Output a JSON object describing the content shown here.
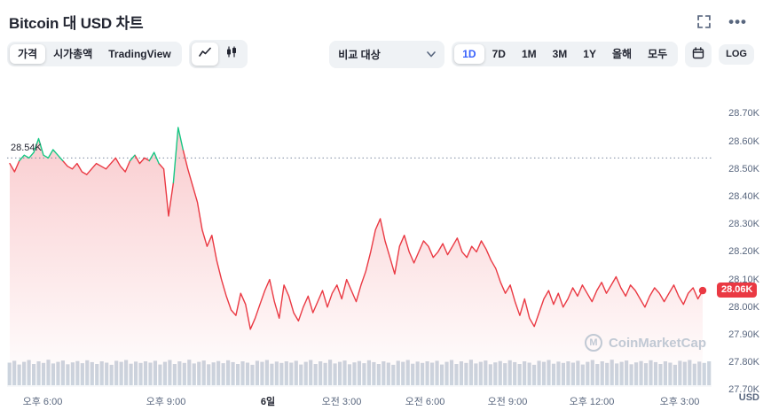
{
  "header": {
    "title": "Bitcoin 대 USD 차트"
  },
  "toolbar": {
    "tabs": [
      {
        "label": "가격",
        "active": true
      },
      {
        "label": "시가총액",
        "active": false
      },
      {
        "label": "TradingView",
        "active": false
      }
    ],
    "chart_types": [
      {
        "name": "line",
        "active": true
      },
      {
        "name": "candlestick",
        "active": false
      }
    ],
    "compare_label": "비교 대상",
    "ranges": [
      {
        "label": "1D",
        "active": true
      },
      {
        "label": "7D",
        "active": false
      },
      {
        "label": "1M",
        "active": false
      },
      {
        "label": "3M",
        "active": false
      },
      {
        "label": "1Y",
        "active": false
      },
      {
        "label": "올해",
        "active": false
      },
      {
        "label": "모두",
        "active": false
      }
    ],
    "log_label": "LOG"
  },
  "watermark": {
    "letter": "M",
    "text": "CoinMarketCap"
  },
  "chart_data": {
    "type": "line",
    "title": "Bitcoin 대 USD 차트 (1D)",
    "y_unit": "USD",
    "ylim": [
      27.7,
      28.82
    ],
    "grid": false,
    "legend": "none",
    "reference": {
      "value": 28.54,
      "label": "28.54K"
    },
    "last": {
      "value": 28.06,
      "label": "28.06K"
    },
    "y_ticks": [
      {
        "value": 28.7,
        "label": "28.70K"
      },
      {
        "value": 28.6,
        "label": "28.60K"
      },
      {
        "value": 28.5,
        "label": "28.50K"
      },
      {
        "value": 28.4,
        "label": "28.40K"
      },
      {
        "value": 28.3,
        "label": "28.30K"
      },
      {
        "value": 28.2,
        "label": "28.20K"
      },
      {
        "value": 28.1,
        "label": "28.10K"
      },
      {
        "value": 28.0,
        "label": "28.00K"
      },
      {
        "value": 27.9,
        "label": "27.90K"
      },
      {
        "value": 27.8,
        "label": "27.80K"
      },
      {
        "value": 27.7,
        "label": "27.70K"
      }
    ],
    "x_ticks": [
      {
        "label": "오후 6:00",
        "pos": 0.05,
        "strong": false
      },
      {
        "label": "오후 9:00",
        "pos": 0.225,
        "strong": false
      },
      {
        "label": "6일",
        "pos": 0.37,
        "strong": true
      },
      {
        "label": "오전 3:00",
        "pos": 0.475,
        "strong": false
      },
      {
        "label": "오전 6:00",
        "pos": 0.593,
        "strong": false
      },
      {
        "label": "오전 9:00",
        "pos": 0.71,
        "strong": false
      },
      {
        "label": "오후 12:00",
        "pos": 0.83,
        "strong": false
      },
      {
        "label": "오후 3:00",
        "pos": 0.955,
        "strong": false
      }
    ],
    "prices_k": [
      28.52,
      28.49,
      28.53,
      28.55,
      28.54,
      28.56,
      28.61,
      28.55,
      28.54,
      28.57,
      28.55,
      28.53,
      28.51,
      28.5,
      28.52,
      28.49,
      28.48,
      28.5,
      28.52,
      28.51,
      28.5,
      28.52,
      28.54,
      28.51,
      28.49,
      28.53,
      28.55,
      28.52,
      28.54,
      28.53,
      28.56,
      28.52,
      28.5,
      28.33,
      28.45,
      28.65,
      28.57,
      28.5,
      28.44,
      28.38,
      28.28,
      28.22,
      28.26,
      28.17,
      28.1,
      28.04,
      27.99,
      27.97,
      28.05,
      28.01,
      27.92,
      27.96,
      28.01,
      28.06,
      28.1,
      28.02,
      27.96,
      28.08,
      28.04,
      27.98,
      27.95,
      28.0,
      28.04,
      27.98,
      28.02,
      28.06,
      28.0,
      28.05,
      28.08,
      28.03,
      28.1,
      28.06,
      28.02,
      28.08,
      28.13,
      28.2,
      28.28,
      28.32,
      28.24,
      28.18,
      28.12,
      28.22,
      28.26,
      28.2,
      28.16,
      28.2,
      28.24,
      28.22,
      28.18,
      28.2,
      28.23,
      28.19,
      28.22,
      28.25,
      28.2,
      28.18,
      28.22,
      28.2,
      28.24,
      28.21,
      28.17,
      28.14,
      28.09,
      28.05,
      28.08,
      28.02,
      27.97,
      28.03,
      27.96,
      27.93,
      27.98,
      28.03,
      28.06,
      28.01,
      28.05,
      28.0,
      28.03,
      28.07,
      28.04,
      28.08,
      28.05,
      28.02,
      28.06,
      28.09,
      28.05,
      28.08,
      28.11,
      28.07,
      28.04,
      28.08,
      28.06,
      28.03,
      28.0,
      28.04,
      28.07,
      28.05,
      28.02,
      28.05,
      28.08,
      28.04,
      28.01,
      28.05,
      28.07,
      28.03,
      28.06
    ],
    "volume_rel": [
      0.85,
      0.92,
      0.78,
      0.88,
      0.95,
      0.8,
      0.9,
      0.84,
      0.96,
      0.82,
      0.88,
      0.93,
      0.79,
      0.86,
      0.91,
      0.83,
      0.94,
      0.87,
      0.8,
      0.9,
      0.85,
      0.77,
      0.92,
      0.88,
      0.95,
      0.81,
      0.89,
      0.84,
      0.9,
      0.85,
      0.92,
      0.78,
      0.88,
      0.95,
      0.8,
      0.9,
      0.84,
      0.96,
      0.82,
      0.88,
      0.93,
      0.79,
      0.86,
      0.91,
      0.83,
      0.94,
      0.87,
      0.8,
      0.9,
      0.85,
      0.77,
      0.92,
      0.88,
      0.95,
      0.81,
      0.89,
      0.84,
      0.9,
      0.85,
      0.92,
      0.78,
      0.88,
      0.95,
      0.8,
      0.9,
      0.84,
      0.96,
      0.82,
      0.88,
      0.93,
      0.79,
      0.86,
      0.91,
      0.83,
      0.94,
      0.87,
      0.8,
      0.9,
      0.85,
      0.77,
      0.92,
      0.88,
      0.95,
      0.81,
      0.89,
      0.84,
      0.9,
      0.85,
      0.92,
      0.78,
      0.88,
      0.95,
      0.8,
      0.9,
      0.84,
      0.96,
      0.82,
      0.88,
      0.93,
      0.79,
      0.86,
      0.91,
      0.83,
      0.94,
      0.87,
      0.8,
      0.9,
      0.85,
      0.77,
      0.92,
      0.88,
      0.95,
      0.81,
      0.89,
      0.84,
      0.9,
      0.85,
      0.92,
      0.78,
      0.88,
      0.95,
      0.8,
      0.9,
      0.84,
      0.96,
      0.82,
      0.88,
      0.93,
      0.79,
      0.86,
      0.91,
      0.83,
      0.94,
      0.87,
      0.8,
      0.9,
      0.85,
      0.77,
      0.92,
      0.88,
      0.95,
      0.81,
      0.89,
      0.84,
      0.9
    ],
    "colors": {
      "up": "#16c784",
      "down": "#ea3943",
      "fill": "#ea3943",
      "volume": "#ccd4de",
      "reference_line": "#7d8aa0",
      "accent_blue": "#3861fb"
    }
  }
}
